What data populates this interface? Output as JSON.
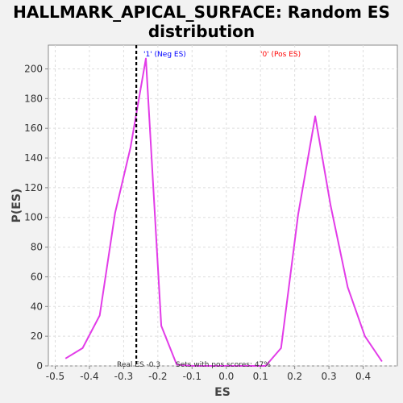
{
  "chart_data": {
    "type": "line",
    "title_lines": [
      "HALLMARK_APICAL_SURFACE: Random ES",
      "distribution"
    ],
    "xlabel": "ES",
    "ylabel": "P(ES)",
    "xlim": [
      -0.52,
      0.5
    ],
    "ylim": [
      0,
      216
    ],
    "xticks": [
      -0.5,
      -0.4,
      -0.3,
      -0.2,
      -0.1,
      0.0,
      0.1,
      0.2,
      0.3,
      0.4
    ],
    "xtick_labels": [
      "-0.5",
      "-0.4",
      "-0.3",
      "-0.2",
      "-0.1",
      "0.0",
      "0.1",
      "0.2",
      "0.3",
      "0.4"
    ],
    "yticks": [
      0,
      20,
      40,
      60,
      80,
      100,
      120,
      140,
      160,
      180,
      200
    ],
    "ytick_labels": [
      "0",
      "20",
      "40",
      "60",
      "80",
      "100",
      "120",
      "140",
      "160",
      "180",
      "200"
    ],
    "grid": true,
    "series": [
      {
        "color": "#e23ce8",
        "points": [
          [
            -0.47,
            5
          ],
          [
            -0.42,
            12
          ],
          [
            -0.37,
            34
          ],
          [
            -0.325,
            103
          ],
          [
            -0.28,
            147
          ],
          [
            -0.235,
            207
          ],
          [
            -0.19,
            27
          ],
          [
            -0.145,
            1
          ],
          [
            -0.1,
            0
          ],
          [
            -0.05,
            0
          ],
          [
            0.0,
            0
          ],
          [
            0.05,
            0
          ],
          [
            0.115,
            0
          ],
          [
            0.16,
            12
          ],
          [
            0.21,
            102
          ],
          [
            0.26,
            168
          ],
          [
            0.305,
            108
          ],
          [
            0.355,
            53
          ],
          [
            0.405,
            20
          ],
          [
            0.455,
            3
          ]
        ]
      }
    ],
    "real_es_line": {
      "x": -0.263,
      "color": "#000000"
    },
    "annotations": {
      "neg_label": "'1' (Neg ES)",
      "neg_color": "#0000ff",
      "pos_label": "'0' (Pos ES)",
      "pos_color": "#ff0000",
      "real_es_text": "Real ES -0.3",
      "pos_scores_text": "Sets with pos scores: 47%"
    }
  }
}
